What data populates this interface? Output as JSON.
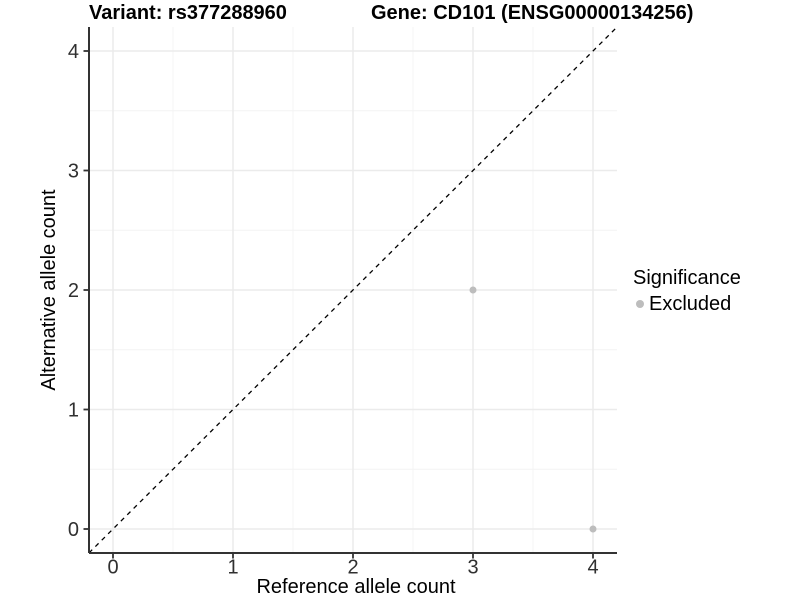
{
  "chart_data": {
    "type": "scatter",
    "title_variant": "Variant: rs377288960",
    "title_gene": "Gene: CD101 (ENSG00000134256)",
    "xlabel": "Reference allele count",
    "ylabel": "Alternative allele count",
    "xlim": [
      -0.2,
      4.2
    ],
    "ylim": [
      -0.2,
      4.2
    ],
    "xticks": [
      0,
      1,
      2,
      3,
      4
    ],
    "yticks": [
      0,
      1,
      2,
      3,
      4
    ],
    "grid": "major+minor",
    "series": [
      {
        "name": "Excluded",
        "color": "#bdbdbd",
        "point_radius": 3.5,
        "points": [
          {
            "x": 3,
            "y": 2
          },
          {
            "x": 4,
            "y": 0
          }
        ]
      }
    ],
    "reference_line": {
      "kind": "identity y=x",
      "style": "dashed",
      "color": "#000000"
    },
    "legend": {
      "title": "Significance",
      "position": "right",
      "items": [
        {
          "label": "Excluded",
          "color": "#bdbdbd"
        }
      ]
    },
    "colors": {
      "background": "#ffffff",
      "grid_major": "#ebebeb",
      "grid_minor": "#f4f4f4",
      "axis_line": "#333333",
      "tick_text": "#303030",
      "title_text": "#000000"
    }
  }
}
